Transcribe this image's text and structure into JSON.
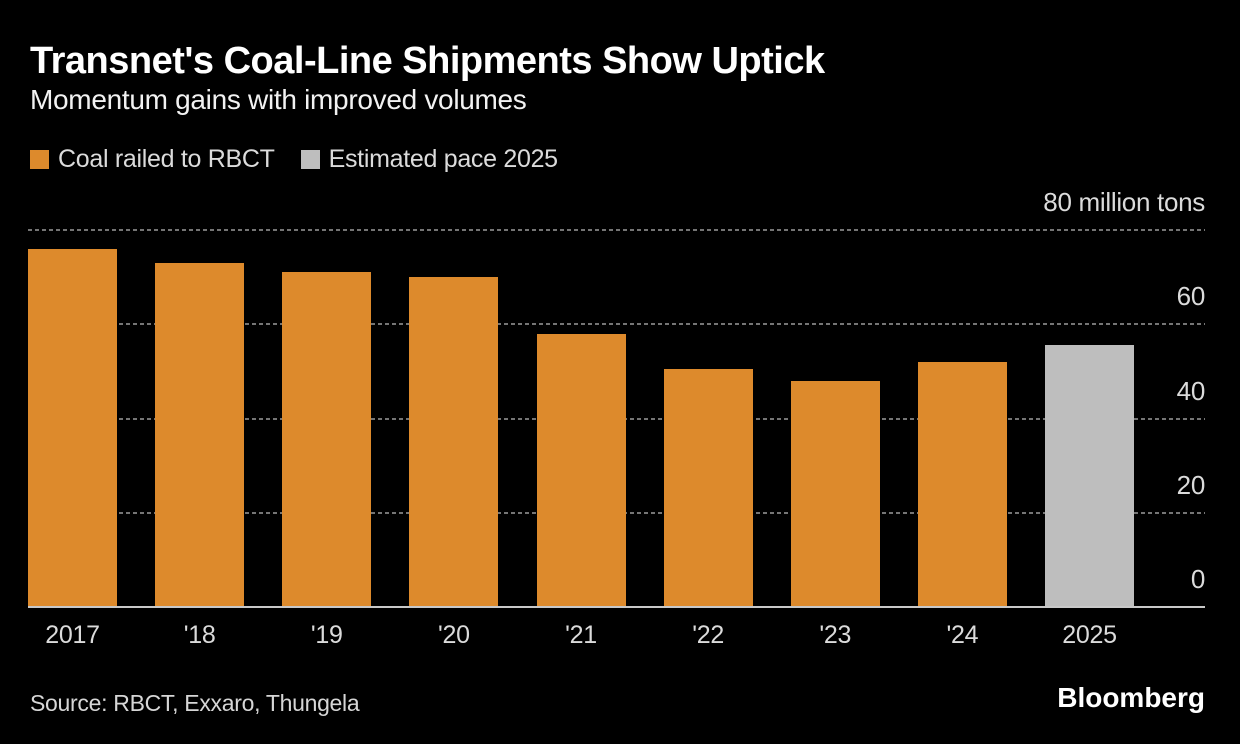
{
  "header": {
    "title": "Transnet's Coal-Line Shipments Show Uptick",
    "subtitle": "Momentum gains with improved volumes"
  },
  "legend": {
    "items": [
      {
        "label": "Coal railed to RBCT",
        "swatch_color": "#DD8A2C"
      },
      {
        "label": "Estimated pace 2025",
        "swatch_color": "#BEBEBE"
      }
    ]
  },
  "chart_data": {
    "type": "bar",
    "title": "Transnet's Coal-Line Shipments Show Uptick",
    "subtitle": "Momentum gains with improved volumes",
    "categories": [
      "2017",
      "'18",
      "'19",
      "'20",
      "'21",
      "'22",
      "'23",
      "'24",
      "2025"
    ],
    "values": [
      76,
      73,
      71,
      70,
      58,
      50.5,
      48,
      52,
      55.5
    ],
    "series_of_bar": [
      0,
      0,
      0,
      0,
      0,
      0,
      0,
      0,
      1
    ],
    "series": [
      {
        "name": "Coal railed to RBCT",
        "color": "#DD8A2C"
      },
      {
        "name": "Estimated pace 2025",
        "color": "#BEBEBE"
      }
    ],
    "ylabel": "million tons",
    "xlabel": "",
    "ylim": [
      0,
      80
    ],
    "yticks": [
      {
        "value": 80,
        "label": "80 million tons"
      },
      {
        "value": 60,
        "label": "60"
      },
      {
        "value": 40,
        "label": "40"
      },
      {
        "value": 20,
        "label": "20"
      },
      {
        "value": 0,
        "label": "0"
      }
    ],
    "grid": "horizontal-dashed",
    "gridline_color": "#757575",
    "baseline_color": "#C8C8C8",
    "legend_position": "top-left",
    "background_color": "#000000"
  },
  "footer": {
    "source": "Source: RBCT, Exxaro, Thungela",
    "brand": "Bloomberg"
  }
}
